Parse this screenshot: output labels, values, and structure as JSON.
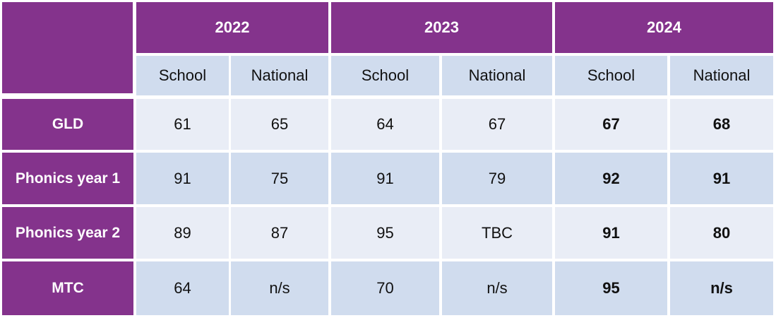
{
  "years": [
    "2022",
    "2023",
    "2024"
  ],
  "subheaders": [
    "School",
    "National",
    "School",
    "National",
    "School",
    "National"
  ],
  "rows": [
    {
      "label": "GLD",
      "values": [
        "61",
        "65",
        "64",
        "67",
        "67",
        "68"
      ]
    },
    {
      "label": "Phonics year 1",
      "values": [
        "91",
        "75",
        "91",
        "79",
        "92",
        "91"
      ]
    },
    {
      "label": "Phonics year 2",
      "values": [
        "89",
        "87",
        "95",
        "TBC",
        "91",
        "80"
      ]
    },
    {
      "label": "MTC",
      "values": [
        "64",
        "n/s",
        "70",
        "n/s",
        "95",
        "n/s"
      ]
    }
  ],
  "colors": {
    "header_purple": "#84338C",
    "band_light": "#E9EDF6",
    "band_dark": "#D0DCEE"
  }
}
